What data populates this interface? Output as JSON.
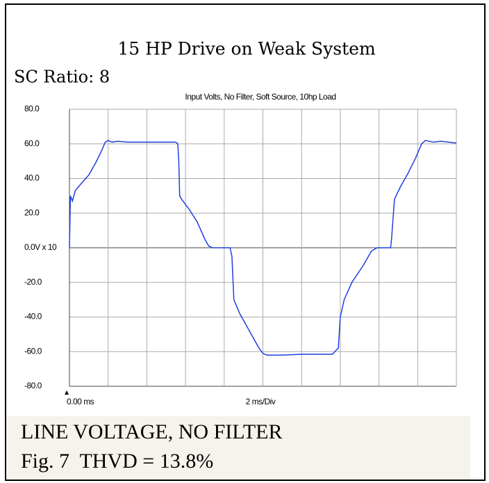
{
  "chart_data": {
    "type": "line",
    "title": "15 HP Drive on Weak System",
    "subtitle": "SC Ratio: 8",
    "plot_title": "Input Volts, No Filter, Soft Source, 10hp Load",
    "x_start_label": "0.00 ms",
    "x_axis_label": "2 ms/Div",
    "caption": "LINE VOLTAGE, NO FILTER",
    "figure_label": "Fig. 7  THVD = 13.8%",
    "xlim": [
      0,
      20
    ],
    "xticks": [
      0,
      2,
      4,
      6,
      8,
      10,
      12,
      14,
      16,
      18,
      20
    ],
    "ylim": [
      -80,
      80
    ],
    "yticks": [
      {
        "value": -80,
        "label": "-80.0"
      },
      {
        "value": -60,
        "label": "-60.0"
      },
      {
        "value": -40,
        "label": "-40.0"
      },
      {
        "value": -20,
        "label": "-20.0"
      },
      {
        "value": 0,
        "label": "0.0V x 10"
      },
      {
        "value": 20,
        "label": "20.0"
      },
      {
        "value": 40,
        "label": "40.0"
      },
      {
        "value": 60,
        "label": "60.0"
      },
      {
        "value": 80,
        "label": "80.0"
      }
    ],
    "grid": true,
    "series": [
      {
        "color": "#1f3fe0",
        "x": [
          0,
          0.05,
          0.15,
          0.3,
          0.6,
          1.0,
          1.4,
          1.7,
          1.85,
          2.0,
          2.2,
          2.5,
          3.0,
          4.0,
          5.5,
          5.6,
          5.65,
          5.7,
          5.8,
          6.2,
          6.6,
          7.0,
          7.2,
          7.4,
          8.3,
          8.4,
          8.5,
          8.8,
          9.4,
          9.8,
          10.0,
          10.2,
          11.0,
          12.0,
          13.6,
          13.8,
          13.9,
          14.0,
          14.2,
          14.6,
          15.2,
          15.6,
          15.9,
          16.6,
          16.65,
          16.8,
          17.1,
          17.5,
          17.9,
          18.2,
          18.4,
          18.8,
          19.2,
          20.0
        ],
        "values": [
          0,
          30,
          27,
          33,
          37,
          42,
          50,
          57,
          61,
          62,
          61,
          61.5,
          61,
          61,
          61,
          60,
          50,
          30,
          28,
          22,
          15,
          5,
          1,
          0,
          0,
          -5,
          -30,
          -38,
          -50,
          -58,
          -61,
          -62,
          -62,
          -61.5,
          -61.5,
          -59,
          -58,
          -40,
          -30,
          -20,
          -10,
          -2,
          0,
          0,
          5,
          28,
          35,
          43,
          52,
          60,
          62,
          61,
          61.5,
          60.5
        ]
      }
    ]
  }
}
